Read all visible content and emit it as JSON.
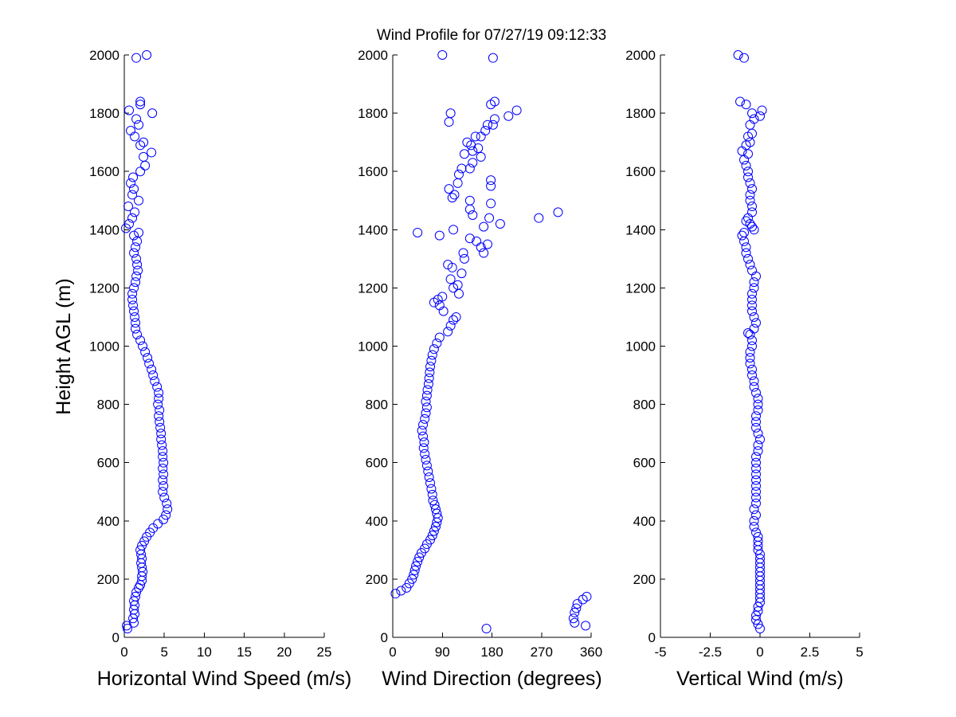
{
  "figure": {
    "title": "Wind Profile for  07/27/19 09:12:33",
    "ylabel": "Height AGL (m)"
  },
  "chart_data": [
    {
      "type": "scatter",
      "xlabel": "Horizontal Wind Speed (m/s)",
      "ylabel": "Height AGL (m)",
      "xlim": [
        0,
        25
      ],
      "ylim": [
        0,
        2000
      ],
      "xticks": [
        "0",
        "5",
        "10",
        "15",
        "20",
        "25"
      ],
      "yticks": [
        "0",
        "200",
        "400",
        "600",
        "800",
        "1000",
        "1200",
        "1400",
        "1600",
        "1800",
        "2000"
      ],
      "marker": "open-circle",
      "color": "#0000ff",
      "points": [
        [
          0.3,
          40
        ],
        [
          0.4,
          30
        ],
        [
          1.2,
          50
        ],
        [
          1.1,
          65
        ],
        [
          1.3,
          80
        ],
        [
          1.2,
          95
        ],
        [
          1.3,
          110
        ],
        [
          1.2,
          125
        ],
        [
          1.4,
          140
        ],
        [
          1.5,
          155
        ],
        [
          1.8,
          170
        ],
        [
          2.0,
          180
        ],
        [
          2.2,
          195
        ],
        [
          2.2,
          210
        ],
        [
          2.3,
          225
        ],
        [
          2.2,
          240
        ],
        [
          2.1,
          255
        ],
        [
          2.2,
          270
        ],
        [
          2.1,
          285
        ],
        [
          2.0,
          300
        ],
        [
          2.2,
          315
        ],
        [
          2.5,
          330
        ],
        [
          2.8,
          345
        ],
        [
          3.2,
          360
        ],
        [
          3.6,
          375
        ],
        [
          4.2,
          390
        ],
        [
          4.9,
          405
        ],
        [
          5.2,
          420
        ],
        [
          5.4,
          440
        ],
        [
          5.3,
          460
        ],
        [
          5.0,
          480
        ],
        [
          4.8,
          500
        ],
        [
          4.9,
          520
        ],
        [
          4.8,
          540
        ],
        [
          4.9,
          560
        ],
        [
          4.8,
          580
        ],
        [
          4.9,
          600
        ],
        [
          4.8,
          620
        ],
        [
          4.8,
          640
        ],
        [
          4.7,
          660
        ],
        [
          4.6,
          680
        ],
        [
          4.6,
          700
        ],
        [
          4.5,
          720
        ],
        [
          4.4,
          740
        ],
        [
          4.3,
          760
        ],
        [
          4.4,
          780
        ],
        [
          4.2,
          800
        ],
        [
          4.3,
          820
        ],
        [
          4.3,
          840
        ],
        [
          4.1,
          860
        ],
        [
          3.8,
          880
        ],
        [
          3.6,
          900
        ],
        [
          3.4,
          920
        ],
        [
          3.1,
          940
        ],
        [
          2.9,
          960
        ],
        [
          2.6,
          980
        ],
        [
          2.3,
          1000
        ],
        [
          2.0,
          1020
        ],
        [
          1.6,
          1040
        ],
        [
          1.4,
          1060
        ],
        [
          1.4,
          1080
        ],
        [
          1.3,
          1100
        ],
        [
          1.2,
          1120
        ],
        [
          1.1,
          1140
        ],
        [
          1.0,
          1160
        ],
        [
          1.0,
          1180
        ],
        [
          1.2,
          1200
        ],
        [
          1.4,
          1220
        ],
        [
          1.5,
          1240
        ],
        [
          1.7,
          1260
        ],
        [
          1.6,
          1280
        ],
        [
          1.5,
          1300
        ],
        [
          1.2,
          1320
        ],
        [
          1.4,
          1340
        ],
        [
          1.6,
          1360
        ],
        [
          1.2,
          1380
        ],
        [
          1.8,
          1390
        ],
        [
          0.2,
          1405
        ],
        [
          0.6,
          1420
        ],
        [
          1.0,
          1440
        ],
        [
          1.3,
          1460
        ],
        [
          0.5,
          1480
        ],
        [
          1.8,
          1500
        ],
        [
          1.0,
          1520
        ],
        [
          1.2,
          1540
        ],
        [
          0.8,
          1560
        ],
        [
          1.1,
          1580
        ],
        [
          2.0,
          1600
        ],
        [
          2.6,
          1620
        ],
        [
          2.4,
          1650
        ],
        [
          3.4,
          1665
        ],
        [
          2.0,
          1690
        ],
        [
          2.4,
          1700
        ],
        [
          1.3,
          1720
        ],
        [
          0.8,
          1740
        ],
        [
          1.8,
          1760
        ],
        [
          1.5,
          1780
        ],
        [
          0.6,
          1810
        ],
        [
          3.5,
          1800
        ],
        [
          2.0,
          1830
        ],
        [
          2.0,
          1840
        ],
        [
          1.5,
          1990
        ],
        [
          2.8,
          2000
        ]
      ]
    },
    {
      "type": "scatter",
      "xlabel": "Wind Direction (degrees)",
      "ylabel": "",
      "xlim": [
        0,
        360
      ],
      "ylim": [
        0,
        2000
      ],
      "xticks": [
        "0",
        "90",
        "180",
        "270",
        "360"
      ],
      "yticks": [
        "0",
        "200",
        "400",
        "600",
        "800",
        "1000",
        "1200",
        "1400",
        "1600",
        "1800",
        "2000"
      ],
      "marker": "open-circle",
      "color": "#0000ff",
      "points": [
        [
          170,
          30
        ],
        [
          350,
          40
        ],
        [
          330,
          50
        ],
        [
          328,
          65
        ],
        [
          330,
          85
        ],
        [
          333,
          100
        ],
        [
          335,
          115
        ],
        [
          345,
          130
        ],
        [
          352,
          140
        ],
        [
          5,
          150
        ],
        [
          15,
          160
        ],
        [
          25,
          170
        ],
        [
          30,
          185
        ],
        [
          35,
          200
        ],
        [
          38,
          215
        ],
        [
          40,
          230
        ],
        [
          42,
          245
        ],
        [
          45,
          260
        ],
        [
          48,
          275
        ],
        [
          52,
          290
        ],
        [
          58,
          305
        ],
        [
          62,
          320
        ],
        [
          68,
          335
        ],
        [
          72,
          350
        ],
        [
          75,
          365
        ],
        [
          78,
          380
        ],
        [
          80,
          395
        ],
        [
          82,
          410
        ],
        [
          80,
          425
        ],
        [
          78,
          440
        ],
        [
          76,
          455
        ],
        [
          73,
          470
        ],
        [
          72,
          490
        ],
        [
          70,
          510
        ],
        [
          68,
          530
        ],
        [
          66,
          550
        ],
        [
          64,
          570
        ],
        [
          62,
          590
        ],
        [
          60,
          610
        ],
        [
          58,
          630
        ],
        [
          56,
          650
        ],
        [
          57,
          670
        ],
        [
          55,
          690
        ],
        [
          53,
          710
        ],
        [
          55,
          730
        ],
        [
          58,
          750
        ],
        [
          60,
          770
        ],
        [
          62,
          790
        ],
        [
          60,
          810
        ],
        [
          62,
          830
        ],
        [
          63,
          850
        ],
        [
          65,
          870
        ],
        [
          66,
          890
        ],
        [
          67,
          910
        ],
        [
          68,
          930
        ],
        [
          70,
          950
        ],
        [
          72,
          970
        ],
        [
          75,
          990
        ],
        [
          80,
          1010
        ],
        [
          85,
          1030
        ],
        [
          100,
          1050
        ],
        [
          105,
          1070
        ],
        [
          110,
          1090
        ],
        [
          115,
          1100
        ],
        [
          92,
          1120
        ],
        [
          85,
          1140
        ],
        [
          75,
          1150
        ],
        [
          82,
          1160
        ],
        [
          90,
          1170
        ],
        [
          120,
          1180
        ],
        [
          110,
          1200
        ],
        [
          118,
          1210
        ],
        [
          105,
          1230
        ],
        [
          125,
          1250
        ],
        [
          108,
          1270
        ],
        [
          100,
          1280
        ],
        [
          130,
          1300
        ],
        [
          128,
          1320
        ],
        [
          165,
          1320
        ],
        [
          160,
          1340
        ],
        [
          172,
          1350
        ],
        [
          152,
          1360
        ],
        [
          140,
          1370
        ],
        [
          85,
          1380
        ],
        [
          45,
          1390
        ],
        [
          110,
          1400
        ],
        [
          165,
          1410
        ],
        [
          195,
          1420
        ],
        [
          175,
          1440
        ],
        [
          265,
          1440
        ],
        [
          145,
          1450
        ],
        [
          300,
          1460
        ],
        [
          140,
          1470
        ],
        [
          178,
          1490
        ],
        [
          140,
          1500
        ],
        [
          108,
          1510
        ],
        [
          112,
          1520
        ],
        [
          102,
          1540
        ],
        [
          178,
          1550
        ],
        [
          118,
          1560
        ],
        [
          178,
          1570
        ],
        [
          120,
          1590
        ],
        [
          125,
          1610
        ],
        [
          140,
          1610
        ],
        [
          145,
          1630
        ],
        [
          160,
          1650
        ],
        [
          130,
          1660
        ],
        [
          145,
          1670
        ],
        [
          155,
          1680
        ],
        [
          142,
          1690
        ],
        [
          135,
          1700
        ],
        [
          150,
          1720
        ],
        [
          168,
          1740
        ],
        [
          172,
          1760
        ],
        [
          160,
          1720
        ],
        [
          185,
          1780
        ],
        [
          182,
          1760
        ],
        [
          102,
          1770
        ],
        [
          105,
          1800
        ],
        [
          210,
          1790
        ],
        [
          225,
          1810
        ],
        [
          178,
          1830
        ],
        [
          185,
          1840
        ],
        [
          90,
          2000
        ],
        [
          182,
          1990
        ]
      ]
    },
    {
      "type": "scatter",
      "xlabel": "Vertical Wind (m/s)",
      "ylabel": "",
      "xlim": [
        -5,
        5
      ],
      "ylim": [
        0,
        2000
      ],
      "xticks": [
        "-5",
        "-2.5",
        "0",
        "2.5",
        "5"
      ],
      "yticks": [
        "0",
        "200",
        "400",
        "600",
        "800",
        "1000",
        "1200",
        "1400",
        "1600",
        "1800",
        "2000"
      ],
      "marker": "open-circle",
      "color": "#0000ff",
      "points": [
        [
          0.0,
          30
        ],
        [
          -0.1,
          45
        ],
        [
          -0.2,
          60
        ],
        [
          -0.2,
          75
        ],
        [
          -0.1,
          90
        ],
        [
          -0.1,
          105
        ],
        [
          0.0,
          120
        ],
        [
          0.0,
          135
        ],
        [
          0.0,
          150
        ],
        [
          0.0,
          165
        ],
        [
          0.0,
          180
        ],
        [
          0.0,
          195
        ],
        [
          0.0,
          210
        ],
        [
          0.0,
          225
        ],
        [
          0.0,
          240
        ],
        [
          0.0,
          255
        ],
        [
          0.0,
          270
        ],
        [
          0.0,
          285
        ],
        [
          -0.1,
          300
        ],
        [
          -0.1,
          315
        ],
        [
          -0.1,
          330
        ],
        [
          -0.1,
          345
        ],
        [
          -0.2,
          360
        ],
        [
          -0.3,
          380
        ],
        [
          -0.3,
          400
        ],
        [
          -0.2,
          420
        ],
        [
          -0.3,
          440
        ],
        [
          -0.2,
          460
        ],
        [
          -0.2,
          480
        ],
        [
          -0.2,
          500
        ],
        [
          -0.2,
          520
        ],
        [
          -0.2,
          540
        ],
        [
          -0.2,
          560
        ],
        [
          -0.2,
          580
        ],
        [
          -0.2,
          600
        ],
        [
          -0.2,
          620
        ],
        [
          -0.1,
          640
        ],
        [
          -0.1,
          660
        ],
        [
          0.0,
          680
        ],
        [
          -0.1,
          700
        ],
        [
          -0.2,
          720
        ],
        [
          -0.2,
          740
        ],
        [
          -0.2,
          760
        ],
        [
          -0.1,
          780
        ],
        [
          -0.1,
          800
        ],
        [
          -0.1,
          820
        ],
        [
          -0.2,
          840
        ],
        [
          -0.3,
          860
        ],
        [
          -0.3,
          880
        ],
        [
          -0.4,
          900
        ],
        [
          -0.4,
          920
        ],
        [
          -0.5,
          940
        ],
        [
          -0.5,
          960
        ],
        [
          -0.5,
          980
        ],
        [
          -0.4,
          1000
        ],
        [
          -0.4,
          1020
        ],
        [
          -0.5,
          1040
        ],
        [
          -0.6,
          1045
        ],
        [
          -0.3,
          1060
        ],
        [
          -0.2,
          1080
        ],
        [
          -0.3,
          1100
        ],
        [
          -0.4,
          1120
        ],
        [
          -0.4,
          1140
        ],
        [
          -0.4,
          1160
        ],
        [
          -0.4,
          1180
        ],
        [
          -0.3,
          1200
        ],
        [
          -0.3,
          1220
        ],
        [
          -0.2,
          1240
        ],
        [
          -0.4,
          1260
        ],
        [
          -0.5,
          1280
        ],
        [
          -0.6,
          1300
        ],
        [
          -0.7,
          1320
        ],
        [
          -0.7,
          1340
        ],
        [
          -0.8,
          1360
        ],
        [
          -0.9,
          1380
        ],
        [
          -0.8,
          1390
        ],
        [
          -0.3,
          1400
        ],
        [
          -0.4,
          1410
        ],
        [
          -0.5,
          1420
        ],
        [
          -0.7,
          1430
        ],
        [
          -0.6,
          1440
        ],
        [
          -0.4,
          1460
        ],
        [
          -0.4,
          1480
        ],
        [
          -0.5,
          1500
        ],
        [
          -0.5,
          1520
        ],
        [
          -0.4,
          1540
        ],
        [
          -0.5,
          1560
        ],
        [
          -0.6,
          1580
        ],
        [
          -0.6,
          1600
        ],
        [
          -0.7,
          1620
        ],
        [
          -0.8,
          1640
        ],
        [
          -0.6,
          1660
        ],
        [
          -0.9,
          1670
        ],
        [
          -0.7,
          1690
        ],
        [
          -0.5,
          1700
        ],
        [
          -0.6,
          1720
        ],
        [
          -0.4,
          1730
        ],
        [
          -0.5,
          1760
        ],
        [
          -0.3,
          1780
        ],
        [
          0.0,
          1790
        ],
        [
          0.1,
          1810
        ],
        [
          -0.4,
          1800
        ],
        [
          -0.7,
          1830
        ],
        [
          -1.0,
          1840
        ],
        [
          -0.8,
          1990
        ],
        [
          -1.1,
          2000
        ]
      ]
    }
  ]
}
